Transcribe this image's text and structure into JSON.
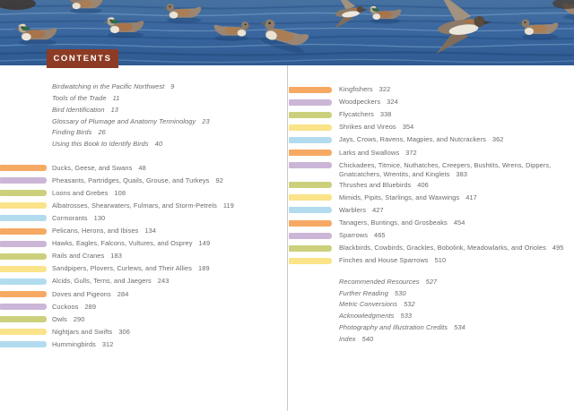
{
  "banner": {
    "contents_label": "CONTENTS",
    "photo_description": "American Wigeon ducks swimming and taking flight on blue water"
  },
  "colors": {
    "contents_box": "#8d3b25",
    "text": "#6b6a67",
    "divider": "#c9c9c9",
    "bar_cycle": [
      "#f6a963",
      "#cbb6d8",
      "#ccd07c",
      "#fae389",
      "#b2dcee"
    ]
  },
  "front_matter": [
    {
      "label": "Birdwatching in the Pacific Northwest",
      "page": "9"
    },
    {
      "label": "Tools of the Trade",
      "page": "11"
    },
    {
      "label": "Bird Identification",
      "page": "13"
    },
    {
      "label": "Glossary of Plumage and Anatomy Terminology",
      "page": "23"
    },
    {
      "label": "Finding Birds",
      "page": "26"
    },
    {
      "label": "Using this Book to Identify Birds",
      "page": "40"
    }
  ],
  "left_sections": [
    {
      "label": "Ducks, Geese, and Swans",
      "page": "48"
    },
    {
      "label": "Pheasants, Partridges, Quails, Grouse, and Turkeys",
      "page": "92"
    },
    {
      "label": "Loons and Grebes",
      "page": "108"
    },
    {
      "label": "Albatrosses, Shearwaters, Fulmars, and Storm-Petrels",
      "page": "119"
    },
    {
      "label": "Cormorants",
      "page": "130"
    },
    {
      "label": "Pelicans, Herons, and Ibises",
      "page": "134"
    },
    {
      "label": "Hawks, Eagles, Falcons, Vultures, and Osprey",
      "page": "149"
    },
    {
      "label": "Rails and Cranes",
      "page": "183"
    },
    {
      "label": "Sandpipers, Plovers, Curlews, and Their Allies",
      "page": "189"
    },
    {
      "label": "Alcids, Gulls, Terns, and Jaegers",
      "page": "243"
    },
    {
      "label": "Doves and Pigeons",
      "page": "284"
    },
    {
      "label": "Cuckoos",
      "page": "289"
    },
    {
      "label": "Owls",
      "page": "290"
    },
    {
      "label": "Nightjars and Swifts",
      "page": "306"
    },
    {
      "label": "Hummingbirds",
      "page": "312"
    }
  ],
  "right_sections": [
    {
      "label": "Kingfishers",
      "page": "322"
    },
    {
      "label": "Woodpeckers",
      "page": "324"
    },
    {
      "label": "Flycatchers",
      "page": "338"
    },
    {
      "label": "Shrikes and Vireos",
      "page": "354"
    },
    {
      "label": "Jays, Crows, Ravens, Magpies, and Nutcrackers",
      "page": "362"
    },
    {
      "label": "Larks and Swallows",
      "page": "372"
    },
    {
      "label": "Chickadees, Titmice, Nuthatches, Creepers, Bushtits, Wrens, Dippers,\nGnatcatchers, Wrentits, and Kinglets",
      "page": "383"
    },
    {
      "label": "Thrushes and Bluebirds",
      "page": "406"
    },
    {
      "label": "Mimids, Pipits, Starlings, and Waxwings",
      "page": "417"
    },
    {
      "label": "Warblers",
      "page": "427"
    },
    {
      "label": "Tanagers, Buntings, and Grosbeaks",
      "page": "454"
    },
    {
      "label": "Sparrows",
      "page": "465"
    },
    {
      "label": "Blackbirds, Cowbirds, Grackles, Bobolink, Meadowlarks, and Orioles",
      "page": "495"
    },
    {
      "label": "Finches and House Sparrows",
      "page": "510"
    }
  ],
  "back_matter": [
    {
      "label": "Recommended Resources",
      "page": "527"
    },
    {
      "label": "Further Reading",
      "page": "530"
    },
    {
      "label": "Metric Conversions",
      "page": "532"
    },
    {
      "label": "Acknowledgments",
      "page": "533"
    },
    {
      "label": "Photography and Illustration Credits",
      "page": "534"
    },
    {
      "label": "Index",
      "page": "540"
    }
  ]
}
